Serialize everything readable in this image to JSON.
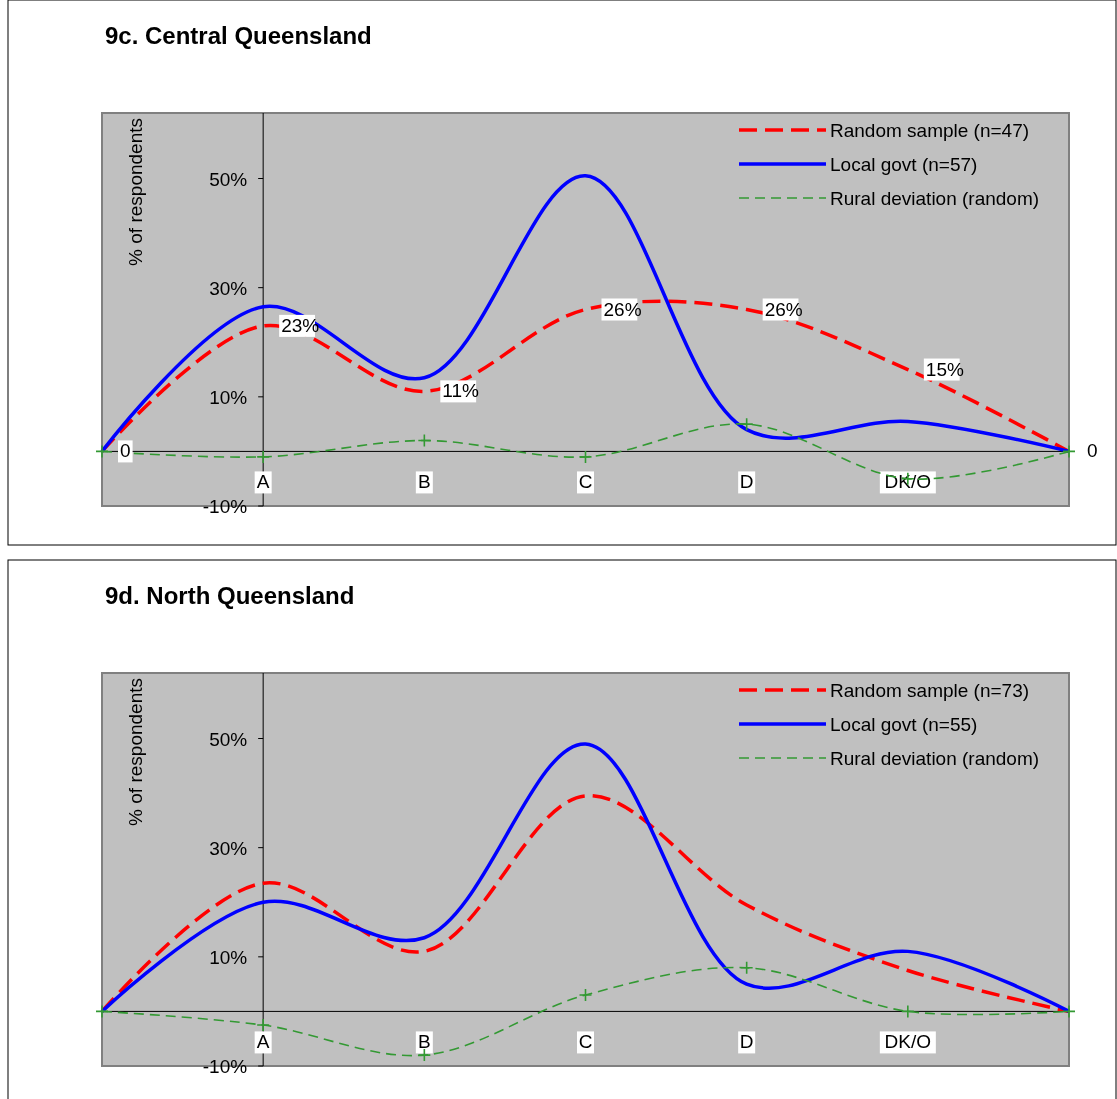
{
  "chart_data": [
    {
      "type": "line",
      "title": "9c. Central Queensland",
      "ylabel": "% of respondents",
      "categories": [
        null,
        "A",
        "B",
        "C",
        "D",
        "DK/O",
        null
      ],
      "ylim": [
        -10,
        62
      ],
      "yticks": [
        {
          "value": -10,
          "label": "-10%"
        },
        {
          "value": 10,
          "label": "10%"
        },
        {
          "value": 30,
          "label": "30%"
        },
        {
          "value": 50,
          "label": "50%"
        }
      ],
      "legend": "top right",
      "series": [
        {
          "name": "Random sample (n=47)",
          "color": "#ff0000",
          "line_style": "dashed",
          "marker": "none",
          "values": [
            0,
            23,
            11,
            26,
            26,
            15,
            0
          ],
          "value_labels": [
            "0",
            "23%",
            "11%",
            "26%",
            "26%",
            "15%",
            "0"
          ]
        },
        {
          "name": "Local govt (n=57)",
          "color": "#0000ff",
          "line_style": "solid",
          "marker": "none",
          "values": [
            0,
            26.5,
            13.5,
            50.5,
            4,
            5.5,
            0
          ]
        },
        {
          "name": "Rural deviation (random)",
          "color": "#339933",
          "line_style": "dashed",
          "marker": "cross",
          "values": [
            0,
            -1,
            2,
            -1,
            5,
            -5,
            0
          ]
        }
      ]
    },
    {
      "type": "line",
      "title": "9d. North Queensland",
      "ylabel": "% of respondents",
      "categories": [
        null,
        "A",
        "B",
        "C",
        "D",
        "DK/O",
        null
      ],
      "ylim": [
        -10,
        62
      ],
      "yticks": [
        {
          "value": -10,
          "label": "-10%"
        },
        {
          "value": 10,
          "label": "10%"
        },
        {
          "value": 30,
          "label": "30%"
        },
        {
          "value": 50,
          "label": "50%"
        }
      ],
      "legend": "top right",
      "series": [
        {
          "name": "Random sample (n=73)",
          "color": "#ff0000",
          "line_style": "dashed",
          "marker": "none",
          "values": [
            0,
            23.5,
            11,
            39.5,
            19.5,
            7.5,
            0
          ]
        },
        {
          "name": "Local govt (n=55)",
          "color": "#0000ff",
          "line_style": "solid",
          "marker": "none",
          "values": [
            0,
            20,
            13.5,
            49,
            5,
            11,
            0
          ]
        },
        {
          "name": "Rural deviation (random)",
          "color": "#339933",
          "line_style": "dashed",
          "marker": "cross",
          "values": [
            0,
            -2.5,
            -8,
            3,
            8,
            0,
            0
          ]
        }
      ]
    }
  ]
}
